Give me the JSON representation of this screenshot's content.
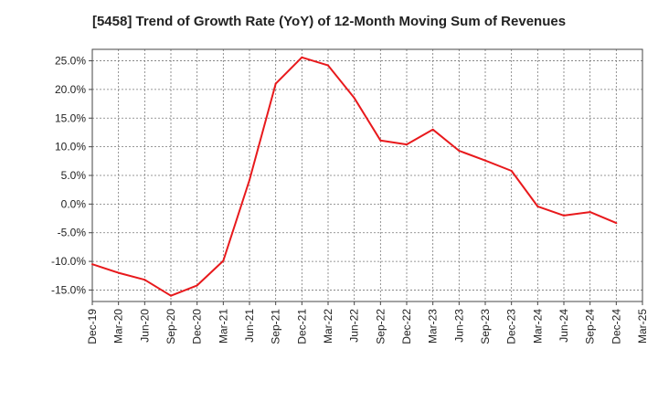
{
  "chart_data": {
    "type": "line",
    "title": "[5458]  Trend of Growth Rate (YoY) of 12-Month Moving Sum of Revenues",
    "xlabel": "",
    "ylabel": "",
    "x_ticks": [
      "Dec-19",
      "Mar-20",
      "Jun-20",
      "Sep-20",
      "Dec-20",
      "Mar-21",
      "Jun-21",
      "Sep-21",
      "Dec-21",
      "Mar-22",
      "Jun-22",
      "Sep-22",
      "Dec-22",
      "Mar-23",
      "Jun-23",
      "Sep-23",
      "Dec-23",
      "Mar-24",
      "Jun-24",
      "Sep-24",
      "Dec-24",
      "Mar-25"
    ],
    "y_ticks": [
      25,
      20,
      15,
      10,
      5,
      0,
      -5,
      -10,
      -15
    ],
    "y_tick_labels": [
      "25.0%",
      "20.0%",
      "15.0%",
      "10.0%",
      "5.0%",
      "0.0%",
      "-5.0%",
      "-10.0%",
      "-15.0%"
    ],
    "ylim": [
      -17.0,
      27.0
    ],
    "grid": true,
    "series": [
      {
        "color": "#e8191c",
        "x": [
          "Dec-19",
          "Mar-20",
          "Jun-20",
          "Sep-20",
          "Dec-20",
          "Mar-21",
          "Jun-21",
          "Sep-21",
          "Dec-21",
          "Mar-22",
          "Jun-22",
          "Sep-22",
          "Dec-22",
          "Mar-23",
          "Jun-23",
          "Sep-23",
          "Dec-23",
          "Mar-24",
          "Jun-24",
          "Sep-24",
          "Dec-24"
        ],
        "values": [
          -10.5,
          -12.0,
          -13.2,
          -16.0,
          -14.2,
          -9.9,
          4.2,
          21.0,
          25.6,
          24.2,
          18.5,
          11.1,
          10.4,
          13.0,
          9.3,
          7.6,
          5.8,
          -0.4,
          -2.0,
          -1.4,
          -3.3
        ]
      }
    ]
  }
}
